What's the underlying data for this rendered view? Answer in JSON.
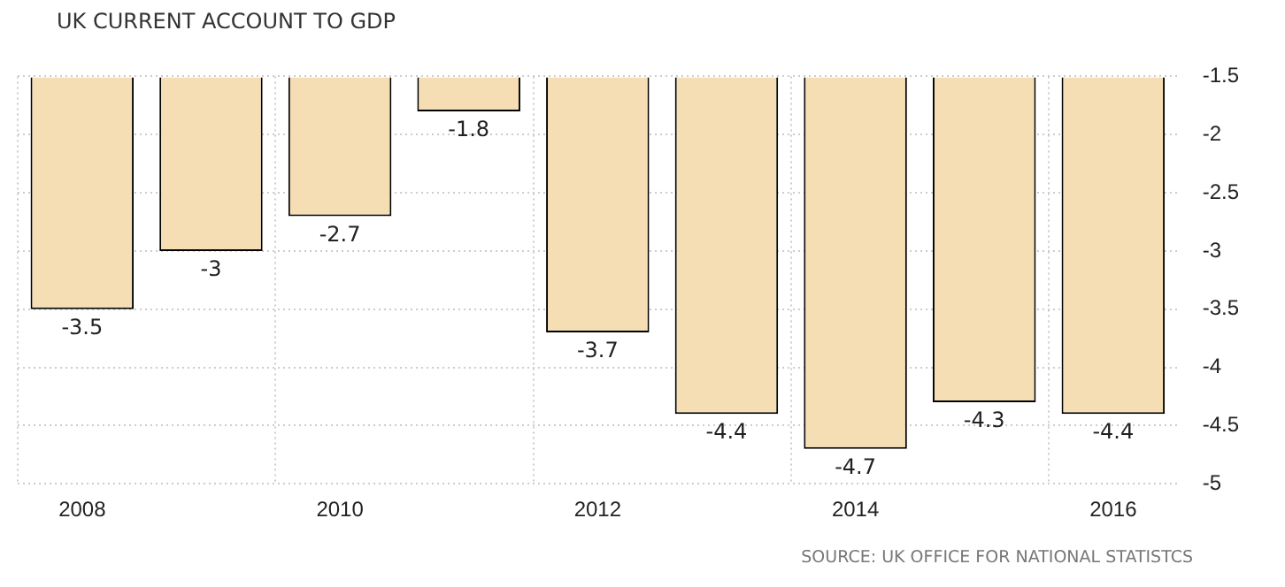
{
  "chart_data": {
    "type": "bar",
    "title": "UK CURRENT ACCOUNT TO GDP",
    "categories": [
      "2008",
      null,
      "2010",
      null,
      "2012",
      null,
      "2014",
      null,
      "2016"
    ],
    "values": [
      -3.5,
      -3,
      -2.7,
      -1.8,
      -3.7,
      -4.4,
      -4.7,
      -4.3,
      -4.4
    ],
    "color": "#f5deb3",
    "ylim": [
      -5,
      -1.5
    ],
    "yticks": [
      -5,
      -4.5,
      -4,
      -3.5,
      -3,
      -2.5,
      -2,
      -1.5
    ],
    "grid": true,
    "data_labels": true,
    "annotations": [
      "SOURCE: UK OFFICE FOR NATIONAL STATISTCS"
    ]
  }
}
